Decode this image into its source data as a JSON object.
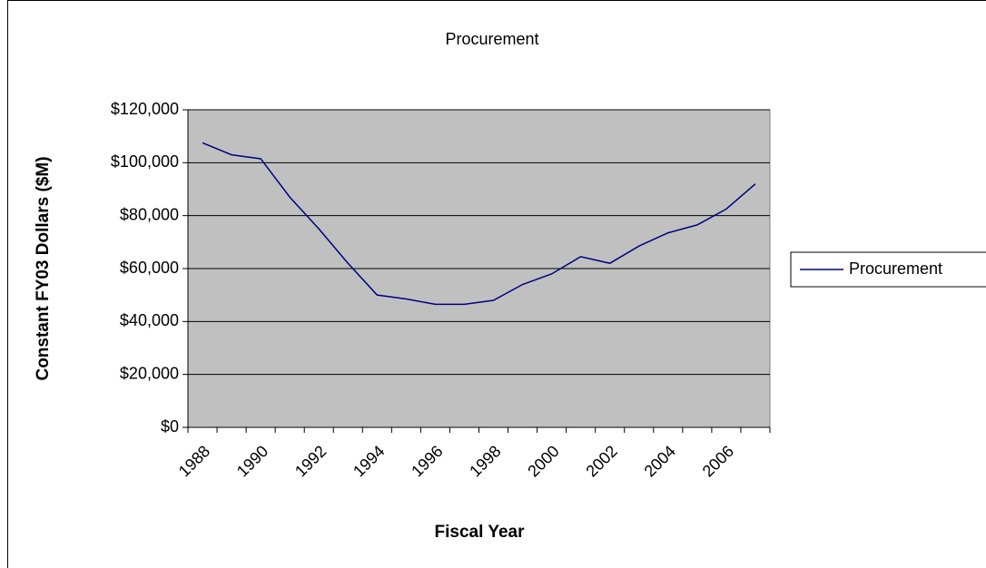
{
  "chart_data": {
    "type": "line",
    "title": "Procurement",
    "x_label": "Fiscal Year",
    "y_label": "Constant FY03 Dollars ($M)",
    "categories": [
      "1988",
      null,
      "1990",
      null,
      "1992",
      null,
      "1994",
      null,
      "1996",
      null,
      "1998",
      null,
      "2000",
      null,
      "2002",
      null,
      "2004",
      null,
      "2006",
      null
    ],
    "series": [
      {
        "name": "Procurement",
        "color": "#000080",
        "values": [
          107500,
          103000,
          101500,
          87000,
          75000,
          62000,
          50000,
          48500,
          46500,
          46500,
          48000,
          54000,
          58000,
          64500,
          62000,
          68500,
          73500,
          76500,
          82500,
          92000
        ]
      }
    ],
    "ylim": [
      0,
      120000
    ],
    "yticks": [
      {
        "value": 0,
        "label": "$0"
      },
      {
        "value": 20000,
        "label": "$20,000"
      },
      {
        "value": 40000,
        "label": "$40,000"
      },
      {
        "value": 60000,
        "label": "$60,000"
      },
      {
        "value": 80000,
        "label": "$80,000"
      },
      {
        "value": 100000,
        "label": "$100,000"
      },
      {
        "value": 120000,
        "label": "$120,000"
      }
    ],
    "grid": true,
    "legend": "right",
    "plot_background": "#c0c0c0"
  }
}
